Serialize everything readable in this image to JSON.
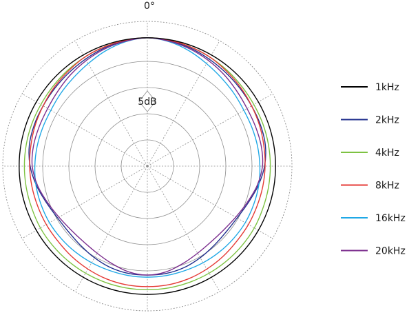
{
  "chart_data": {
    "type": "polar",
    "angle_label": "0°",
    "ring_step_label": "5dB",
    "rings": 5,
    "spokes": 12,
    "grid": true,
    "legend_position": "right",
    "series": [
      {
        "name": "1kHz",
        "color": "#000000",
        "levels": [
          24.5,
          24.5,
          24.5,
          24.5,
          24.5,
          24.5,
          24.5,
          24.5,
          24.5,
          24.5,
          24.5,
          24.5,
          24.5,
          24.5,
          24.5,
          24.5,
          24.5,
          24.5,
          24.5,
          24.5,
          24.5,
          24.5,
          24.5,
          24.5,
          24.5,
          24.5,
          24.5,
          24.5,
          24.5,
          24.5,
          24.5,
          24.5,
          24.5,
          24.5,
          24.5,
          24.5
        ]
      },
      {
        "name": "2kHz",
        "color": "#1f2e8c",
        "levels": [
          24.5,
          24.3,
          24.0,
          23.6,
          23.3,
          23.1,
          23.0,
          23.0,
          22.9,
          22.4,
          21.5,
          20.5,
          19.8,
          19.6,
          19.8,
          20.2,
          20.6,
          20.8,
          20.8,
          20.8,
          20.6,
          20.2,
          19.8,
          19.6,
          19.8,
          20.5,
          21.5,
          22.4,
          22.9,
          23.0,
          23.0,
          23.1,
          23.3,
          23.6,
          24.0,
          24.3
        ]
      },
      {
        "name": "4kHz",
        "color": "#7dc242",
        "levels": [
          24.5,
          24.4,
          24.2,
          24.0,
          23.8,
          23.6,
          23.5,
          23.5,
          23.5,
          23.5,
          23.5,
          23.5,
          23.6,
          23.6,
          23.6,
          23.6,
          23.6,
          23.6,
          23.6,
          23.6,
          23.6,
          23.6,
          23.6,
          23.6,
          23.6,
          23.5,
          23.5,
          23.5,
          23.5,
          23.5,
          23.5,
          23.6,
          23.8,
          24.0,
          24.2,
          24.4
        ]
      },
      {
        "name": "8kHz",
        "color": "#e53935",
        "levels": [
          24.5,
          24.4,
          24.2,
          24.0,
          23.6,
          23.3,
          23.0,
          22.8,
          22.6,
          22.5,
          22.4,
          22.3,
          22.3,
          22.3,
          22.5,
          22.7,
          22.9,
          23.0,
          23.0,
          23.0,
          22.9,
          22.7,
          22.5,
          22.3,
          22.3,
          22.3,
          22.4,
          22.5,
          22.6,
          22.8,
          23.0,
          23.3,
          23.6,
          24.0,
          24.2,
          24.4
        ]
      },
      {
        "name": "16kHz",
        "color": "#1fa8e6",
        "levels": [
          24.5,
          24.1,
          23.4,
          22.6,
          22.0,
          21.6,
          21.3,
          21.3,
          21.4,
          21.5,
          21.6,
          21.6,
          21.6,
          21.5,
          21.4,
          21.3,
          21.2,
          21.2,
          21.2,
          21.2,
          21.2,
          21.3,
          21.4,
          21.5,
          21.6,
          21.6,
          21.6,
          21.5,
          21.4,
          21.3,
          21.3,
          21.6,
          22.0,
          22.6,
          23.4,
          24.1
        ]
      },
      {
        "name": "20kHz",
        "color": "#7b2d8e",
        "levels": [
          24.5,
          24.2,
          23.8,
          23.3,
          22.8,
          22.3,
          22.0,
          22.0,
          22.1,
          22.0,
          21.3,
          20.3,
          19.5,
          19.0,
          18.9,
          19.2,
          19.8,
          20.5,
          20.8,
          20.5,
          19.8,
          19.2,
          18.9,
          19.0,
          19.5,
          20.3,
          21.3,
          22.0,
          22.1,
          22.0,
          22.0,
          22.3,
          22.8,
          23.3,
          23.8,
          24.2
        ]
      }
    ]
  }
}
